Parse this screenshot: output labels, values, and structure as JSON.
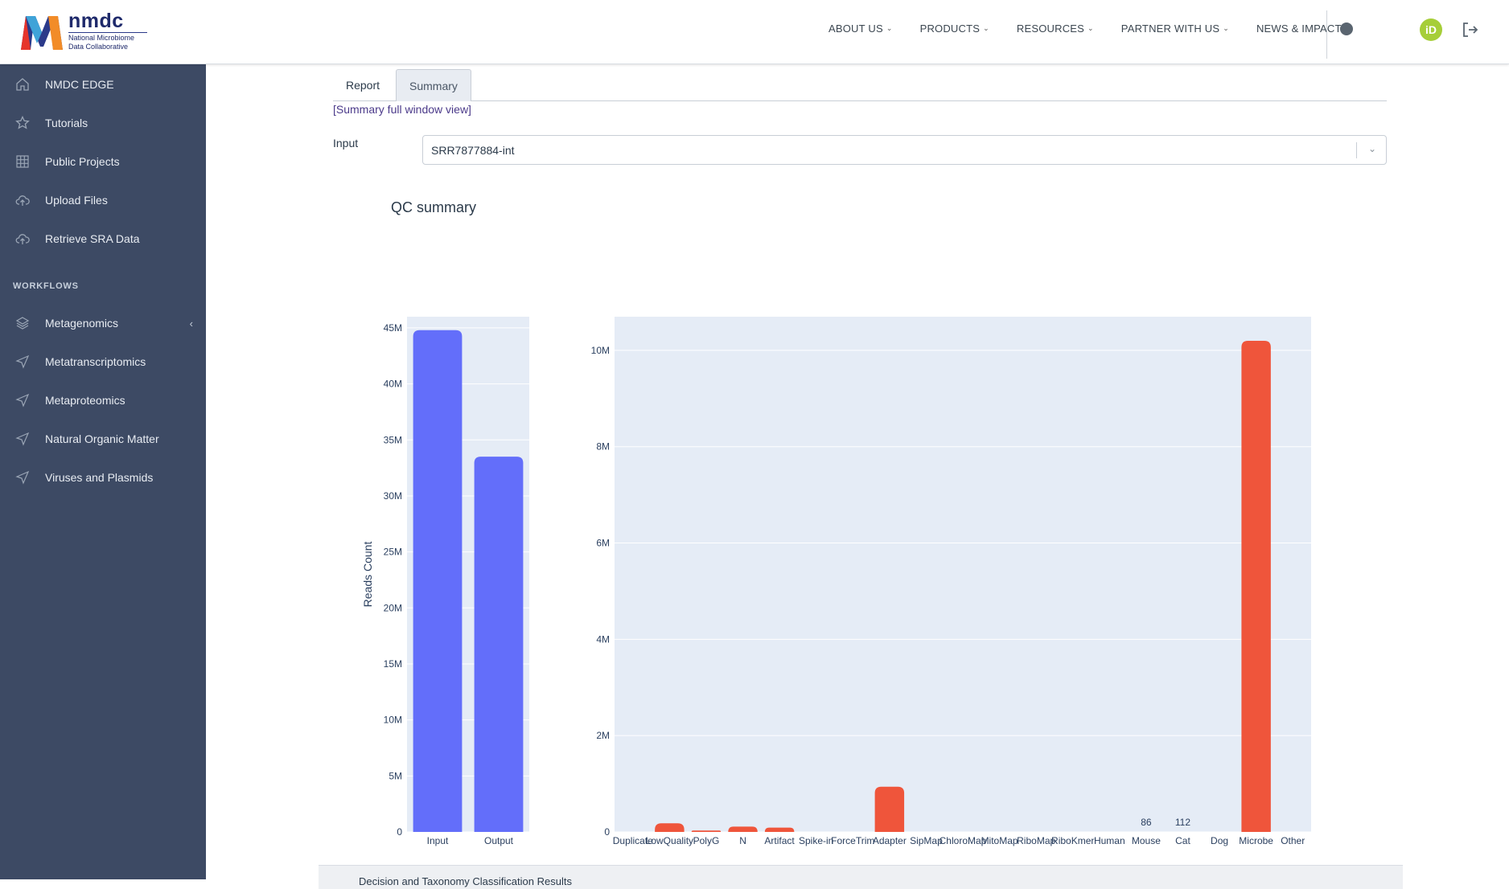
{
  "header": {
    "logo": {
      "word": "nmdc",
      "subtitle_line1": "National Microbiome",
      "subtitle_line2": "Data Collaborative"
    },
    "nav": [
      {
        "label": "ABOUT US"
      },
      {
        "label": "PRODUCTS"
      },
      {
        "label": "RESOURCES"
      },
      {
        "label": "PARTNER WITH US"
      },
      {
        "label": "NEWS & IMPACT"
      }
    ],
    "orcid_label": "iD"
  },
  "sidebar": {
    "items": [
      {
        "label": "NMDC EDGE",
        "icon": "home-icon"
      },
      {
        "label": "Tutorials",
        "icon": "star-icon"
      },
      {
        "label": "Public Projects",
        "icon": "grid-icon"
      },
      {
        "label": "Upload Files",
        "icon": "cloud-upload-icon"
      },
      {
        "label": "Retrieve SRA Data",
        "icon": "cloud-upload-icon"
      }
    ],
    "workflows_heading": "WORKFLOWS",
    "workflows": [
      {
        "label": "Metagenomics",
        "icon": "layers-icon"
      },
      {
        "label": "Metatranscriptomics",
        "icon": "send-icon"
      },
      {
        "label": "Metaproteomics",
        "icon": "send-icon"
      },
      {
        "label": "Natural Organic Matter",
        "icon": "send-icon"
      },
      {
        "label": "Viruses and Plasmids",
        "icon": "send-icon"
      }
    ]
  },
  "main": {
    "tabs": [
      {
        "label": "Report"
      },
      {
        "label": "Summary"
      }
    ],
    "active_tab": "Summary",
    "full_window_link": "[Summary full window view]",
    "input_label": "Input",
    "input_value": "SRR7877884-int",
    "section_title": "QC summary",
    "bottom_panel_text": "Decision and Taxonomy Classification Results"
  },
  "colors": {
    "sidebar_bg": "#3d4a64",
    "bar_blue": "#636efa",
    "bar_red": "#ef553b",
    "plot_bg": "#e5ecf6",
    "link": "#4b3a8a"
  },
  "chart_data": [
    {
      "type": "bar",
      "categories": [
        "Input",
        "Output"
      ],
      "values": [
        44800000,
        33500000
      ],
      "ylabel": "Reads Count",
      "ylim": [
        0,
        46000000
      ],
      "yticks": [
        "0",
        "5M",
        "10M",
        "15M",
        "20M",
        "25M",
        "30M",
        "35M",
        "40M",
        "45M"
      ],
      "ytick_values": [
        0,
        5000000,
        10000000,
        15000000,
        20000000,
        25000000,
        30000000,
        35000000,
        40000000,
        45000000
      ],
      "grid": true
    },
    {
      "type": "bar",
      "categories": [
        "Duplicate",
        "LowQuality",
        "PolyG",
        "N",
        "Artifact",
        "Spike-in",
        "ForceTrim",
        "Adapter",
        "SipMap",
        "ChloroMap",
        "MitoMap",
        "RiboMap",
        "RiboKmer",
        "Human",
        "Mouse",
        "Cat",
        "Dog",
        "Microbe",
        "Other"
      ],
      "values": [
        0,
        180000,
        30000,
        110000,
        90000,
        0,
        0,
        940000,
        0,
        0,
        0,
        0,
        0,
        0,
        86,
        112,
        0,
        10200000,
        0
      ],
      "data_labels": {
        "Mouse": "86",
        "Cat": "112"
      },
      "ylim": [
        0,
        10700000
      ],
      "yticks": [
        "0",
        "2M",
        "4M",
        "6M",
        "8M",
        "10M"
      ],
      "ytick_values": [
        0,
        2000000,
        4000000,
        6000000,
        8000000,
        10000000
      ],
      "grid": true
    }
  ]
}
